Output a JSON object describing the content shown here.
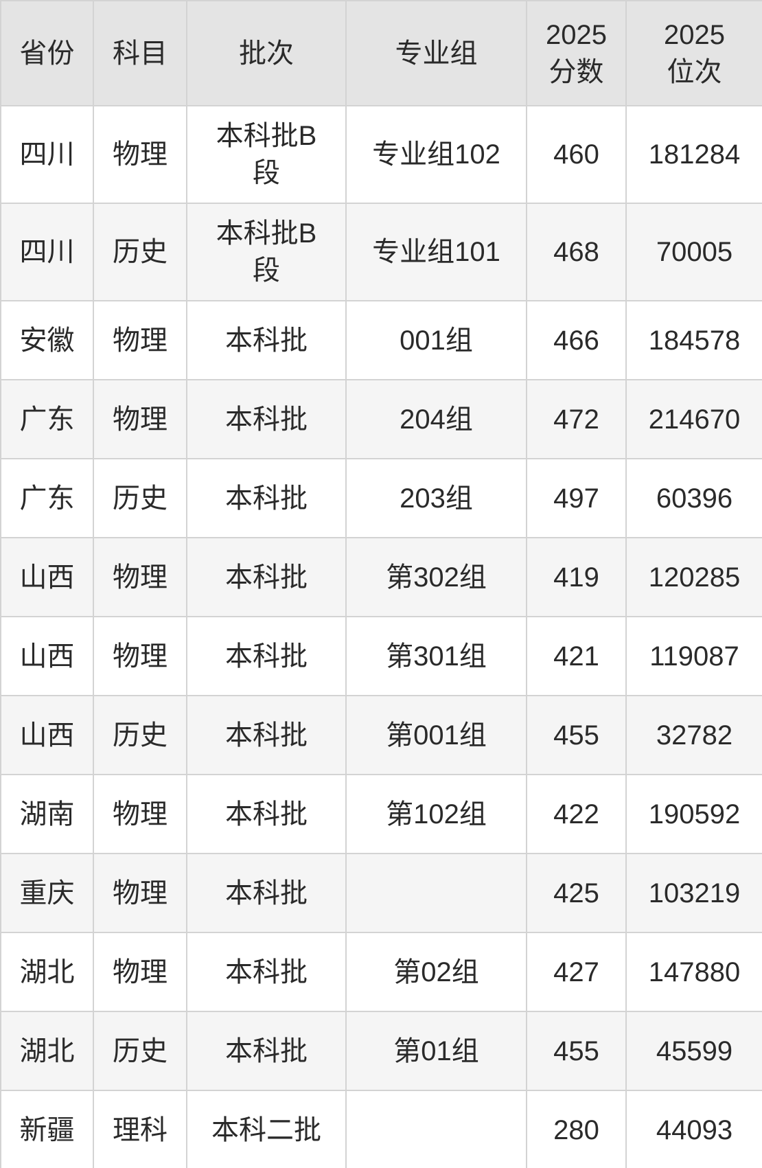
{
  "colors": {
    "header_bg": "#e4e4e4",
    "row_bg": "#ffffff",
    "row_alt_bg": "#f5f5f5",
    "border": "#d3d3d3",
    "text": "#2a2a2a"
  },
  "table": {
    "columns": [
      {
        "label": "省份"
      },
      {
        "label": "科目"
      },
      {
        "label": "批次"
      },
      {
        "label": "专业组"
      },
      {
        "label_line1": "2025",
        "label_line2": "分数"
      },
      {
        "label_line1": "2025",
        "label_line2": "位次"
      }
    ],
    "rows": [
      {
        "province": "四川",
        "subject": "物理",
        "batch": "本科批B段",
        "group": "专业组102",
        "score": "460",
        "rank": "181284"
      },
      {
        "province": "四川",
        "subject": "历史",
        "batch": "本科批B段",
        "group": "专业组101",
        "score": "468",
        "rank": "70005"
      },
      {
        "province": "安徽",
        "subject": "物理",
        "batch": "本科批",
        "group": "001组",
        "score": "466",
        "rank": "184578"
      },
      {
        "province": "广东",
        "subject": "物理",
        "batch": "本科批",
        "group": "204组",
        "score": "472",
        "rank": "214670"
      },
      {
        "province": "广东",
        "subject": "历史",
        "batch": "本科批",
        "group": "203组",
        "score": "497",
        "rank": "60396"
      },
      {
        "province": "山西",
        "subject": "物理",
        "batch": "本科批",
        "group": "第302组",
        "score": "419",
        "rank": "120285"
      },
      {
        "province": "山西",
        "subject": "物理",
        "batch": "本科批",
        "group": "第301组",
        "score": "421",
        "rank": "119087"
      },
      {
        "province": "山西",
        "subject": "历史",
        "batch": "本科批",
        "group": "第001组",
        "score": "455",
        "rank": "32782"
      },
      {
        "province": "湖南",
        "subject": "物理",
        "batch": "本科批",
        "group": "第102组",
        "score": "422",
        "rank": "190592"
      },
      {
        "province": "重庆",
        "subject": "物理",
        "batch": "本科批",
        "group": "",
        "score": "425",
        "rank": "103219"
      },
      {
        "province": "湖北",
        "subject": "物理",
        "batch": "本科批",
        "group": "第02组",
        "score": "427",
        "rank": "147880"
      },
      {
        "province": "湖北",
        "subject": "历史",
        "batch": "本科批",
        "group": "第01组",
        "score": "455",
        "rank": "45599"
      },
      {
        "province": "新疆",
        "subject": "理科",
        "batch": "本科二批",
        "group": "",
        "score": "280",
        "rank": "44093"
      }
    ]
  }
}
